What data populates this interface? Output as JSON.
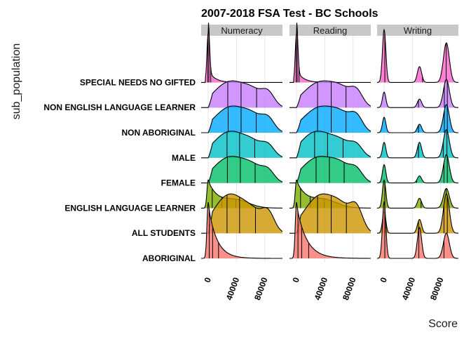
{
  "chart_data": {
    "type": "ridgeline",
    "title": "2007-2018 FSA Test - BC Schools",
    "xlabel": "Score",
    "ylabel": "sub_population",
    "xlim": [
      -10000,
      105000
    ],
    "x_ticks": [
      0,
      40000,
      80000
    ],
    "x_tick_labels": [
      "0",
      "40000",
      "80000"
    ],
    "panels": [
      "Numeracy",
      "Reading",
      "Writing"
    ],
    "categories": [
      "ABORIGINAL",
      "ALL STUDENTS",
      "ENGLISH LANGUAGE LEARNER",
      "FEMALE",
      "MALE",
      "NON ABORIGINAL",
      "NON ENGLISH LANGUAGE LEARNER",
      "SPECIAL NEEDS NO GIFTED"
    ],
    "colors": [
      "#f8766d",
      "#cd9600",
      "#7cae00",
      "#00be67",
      "#00bfc4",
      "#00a9ff",
      "#c77cff",
      "#ff61cc"
    ],
    "quantile_lines": [
      0.25,
      0.5,
      0.75
    ]
  }
}
